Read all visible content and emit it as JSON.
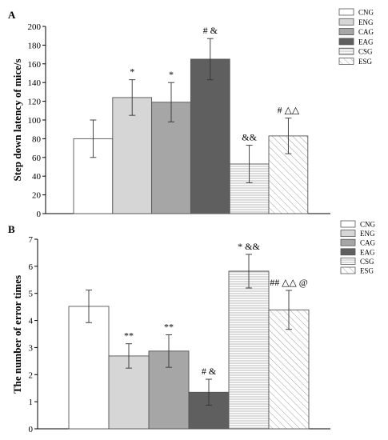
{
  "chart_data": [
    {
      "type": "bar",
      "panel_label": "A",
      "ylabel": "Step down latency of mice/s",
      "ylim": [
        0,
        200
      ],
      "yticks": [
        0,
        20,
        40,
        60,
        80,
        100,
        120,
        140,
        160,
        180,
        200
      ],
      "tick_labels": [
        "0",
        "20",
        "40",
        "60",
        "80",
        "100",
        "120",
        "140",
        "160",
        "180",
        "200"
      ],
      "categories": [
        "CNG",
        "ENG",
        "CAG",
        "EAG",
        "CSG",
        "ESG"
      ],
      "values": [
        80,
        124,
        119,
        165,
        53,
        83
      ],
      "errors": [
        20,
        19,
        21,
        22,
        20,
        19
      ],
      "annotations": [
        "",
        "*",
        "*",
        "# &",
        "&&",
        "# △△"
      ],
      "fills": [
        "#ffffff",
        "#d6d6d6",
        "#a6a6a6",
        "#5f5f5f",
        "hlines",
        "diag"
      ],
      "legend": [
        "CNG",
        "ENG",
        "CAG",
        "EAG",
        "CSG",
        "ESG"
      ],
      "legend_position": "top-right"
    },
    {
      "type": "bar",
      "panel_label": "B",
      "ylabel": "The number of error times",
      "ylim": [
        0,
        7
      ],
      "yticks": [
        0,
        1,
        2,
        3,
        4,
        5,
        6,
        7
      ],
      "tick_labels": [
        "0",
        "1",
        "2",
        "3",
        "4",
        "5",
        "6",
        "7"
      ],
      "categories": [
        "CNG",
        "ENG",
        "CAG",
        "EAG",
        "CSG",
        "ESG"
      ],
      "values": [
        4.52,
        2.69,
        2.87,
        1.35,
        5.82,
        4.39
      ],
      "errors": [
        0.6,
        0.45,
        0.6,
        0.48,
        0.62,
        0.72
      ],
      "annotations": [
        "",
        "**",
        "**",
        "# &",
        "* &&",
        "## △△ @"
      ],
      "fills": [
        "#ffffff",
        "#d6d6d6",
        "#a6a6a6",
        "#5f5f5f",
        "hlines",
        "diag"
      ],
      "legend": [
        "CNG",
        "ENG",
        "CAG",
        "EAG",
        "CSG",
        "ESG"
      ],
      "legend_position": "top-right"
    }
  ]
}
